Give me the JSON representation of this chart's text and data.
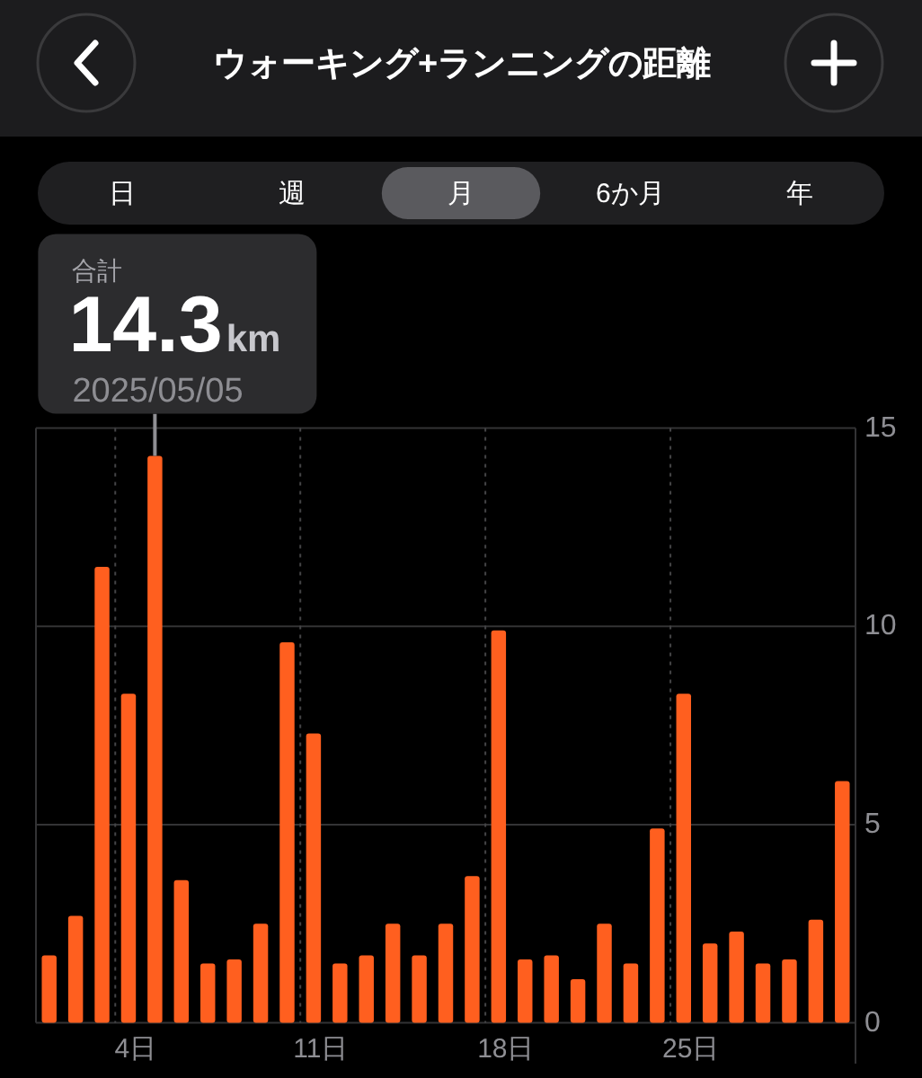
{
  "chart_data": {
    "type": "bar",
    "title": "ウォーキング+ランニングの距離",
    "x": [
      1,
      2,
      3,
      4,
      5,
      6,
      7,
      8,
      9,
      10,
      11,
      12,
      13,
      14,
      15,
      16,
      17,
      18,
      19,
      20,
      21,
      22,
      23,
      24,
      25,
      26,
      27,
      28,
      29,
      30,
      31
    ],
    "values": [
      1.7,
      2.7,
      11.5,
      8.3,
      14.3,
      3.6,
      1.5,
      1.6,
      2.5,
      9.6,
      7.3,
      1.5,
      1.7,
      2.5,
      1.7,
      2.5,
      3.7,
      9.9,
      1.6,
      1.7,
      1.1,
      2.5,
      1.5,
      4.9,
      8.3,
      2.0,
      2.3,
      1.5,
      1.6,
      2.6,
      6.1
    ],
    "color": "#ff5f1f",
    "xlim": [
      0.5,
      31.5
    ],
    "xticks": [
      {
        "value": 4,
        "label": "4日"
      },
      {
        "value": 11,
        "label": "11日"
      },
      {
        "value": 18,
        "label": "18日"
      },
      {
        "value": 25,
        "label": "25日"
      }
    ],
    "ylim": [
      0,
      15
    ],
    "yticks": [
      0,
      5,
      10,
      15
    ],
    "grid": true,
    "annotations": [
      "日",
      "週",
      "月",
      "6か月",
      "年",
      {
        "text": "合計\n14.3km\n2025/05/05",
        "x": 5,
        "y": 14.3
      }
    ]
  }
}
